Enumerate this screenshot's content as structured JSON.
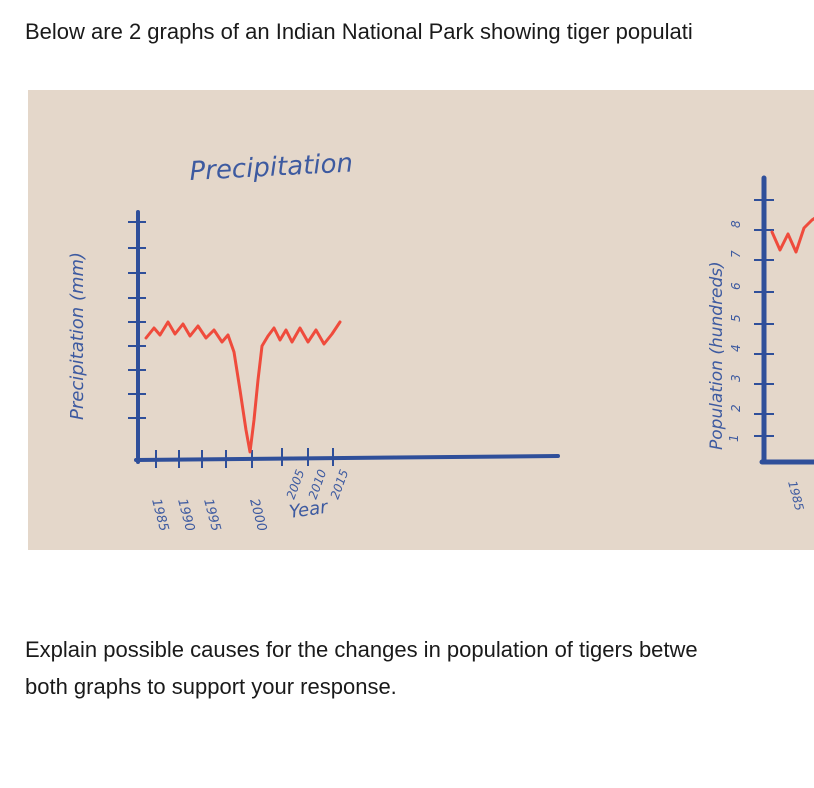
{
  "intro_text": "Below are 2 graphs of an Indian National Park showing tiger populati",
  "question": {
    "line1": "Explain possible causes for the changes in population of tigers betwe",
    "line2": "both graphs to support your response."
  },
  "photo": {
    "background_color": "#e4d7ca",
    "axis_color": "#2f4f9a",
    "label_color": "#3d5aa0",
    "line_color": "#ef4b3c"
  },
  "chart_data": [
    {
      "type": "line",
      "title": "Precipitation",
      "xlabel": "Year",
      "ylabel": "Precipitation (mm)",
      "x": [
        "1985",
        "1990",
        "1995",
        "2000",
        "2005",
        "2010",
        "2015"
      ],
      "x_tick_labels": [
        "1985",
        "1990",
        "1995",
        "2000",
        "2005",
        "2010",
        "2015"
      ]
    },
    {
      "type": "line",
      "title": "",
      "ylabel": "Population (hundreds)",
      "y_tick_labels": [
        "1",
        "2",
        "3",
        "4",
        "5",
        "6",
        "7",
        "8"
      ],
      "x_tick_labels": [
        "1985"
      ]
    }
  ]
}
